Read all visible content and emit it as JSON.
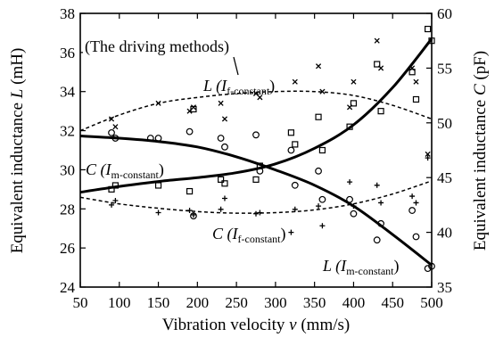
{
  "chart_data": {
    "type": "scatter",
    "xlabel": {
      "text": "Vibration velocity ",
      "var": "v",
      "unit": " (mm/s)"
    },
    "ylabel_left": {
      "text": "Equivalent inductance ",
      "var": "L",
      "unit": " (mH)"
    },
    "ylabel_right": {
      "text": "Equivalent inductance ",
      "var": "C",
      "unit": " (pF)"
    },
    "xlim": [
      50,
      500
    ],
    "ylim_left": [
      24,
      38
    ],
    "ylim_right": [
      35,
      60
    ],
    "xticks": [
      "50",
      "100",
      "150",
      "200",
      "250",
      "300",
      "350",
      "400",
      "450",
      "500"
    ],
    "yticks_left": [
      "24",
      "26",
      "28",
      "30",
      "32",
      "34",
      "36",
      "38"
    ],
    "yticks_right": [
      "35",
      "40",
      "45",
      "50",
      "55",
      "60"
    ],
    "grid": false,
    "annotations": [
      {
        "id": "methods",
        "text": "(The driving methods)"
      },
      {
        "id": "L_f",
        "main": "L (I",
        "sub": "f-constant",
        "close": ")"
      },
      {
        "id": "C_m",
        "main": "C (I",
        "sub": "m-constant",
        "close": ")"
      },
      {
        "id": "C_f",
        "main": "C (I",
        "sub": "f-constant",
        "close": ")"
      },
      {
        "id": "L_m",
        "main": "L (I",
        "sub": "m-constant",
        "close": ")"
      }
    ],
    "series": [
      {
        "axis": "left",
        "marker": "x",
        "line": "dashed",
        "points": [
          [
            90,
            32.6
          ],
          [
            95,
            32.2
          ],
          [
            150,
            33.4
          ],
          [
            190,
            33.0
          ],
          [
            195,
            33.2
          ],
          [
            230,
            33.4
          ],
          [
            235,
            32.6
          ],
          [
            275,
            33.9
          ],
          [
            280,
            33.7
          ],
          [
            320,
            36.4
          ],
          [
            325,
            34.5
          ],
          [
            355,
            35.3
          ],
          [
            360,
            34.0
          ],
          [
            395,
            33.2
          ],
          [
            400,
            34.5
          ],
          [
            430,
            36.6
          ],
          [
            435,
            35.2
          ],
          [
            475,
            35.2
          ],
          [
            480,
            34.5
          ],
          [
            495,
            30.8
          ]
        ],
        "fit": [
          [
            50,
            32.0
          ],
          [
            100,
            32.8
          ],
          [
            150,
            33.4
          ],
          [
            200,
            33.7
          ],
          [
            250,
            33.9
          ],
          [
            300,
            34.0
          ],
          [
            350,
            34.0
          ],
          [
            400,
            33.8
          ],
          [
            450,
            33.3
          ],
          [
            500,
            32.6
          ]
        ]
      },
      {
        "axis": "left",
        "marker": "square",
        "line": "solid",
        "points": [
          [
            90,
            29.0
          ],
          [
            95,
            29.2
          ],
          [
            150,
            29.2
          ],
          [
            190,
            28.9
          ],
          [
            195,
            33.1
          ],
          [
            230,
            29.5
          ],
          [
            235,
            29.3
          ],
          [
            275,
            29.5
          ],
          [
            280,
            30.2
          ],
          [
            320,
            31.9
          ],
          [
            325,
            31.3
          ],
          [
            355,
            32.7
          ],
          [
            360,
            31.0
          ],
          [
            395,
            32.2
          ],
          [
            400,
            33.4
          ],
          [
            430,
            35.4
          ],
          [
            435,
            33.0
          ],
          [
            475,
            35.0
          ],
          [
            480,
            33.6
          ],
          [
            495,
            37.2
          ],
          [
            500,
            36.6
          ]
        ],
        "fit": [
          [
            50,
            28.85
          ],
          [
            100,
            29.15
          ],
          [
            150,
            29.4
          ],
          [
            200,
            29.6
          ],
          [
            250,
            29.85
          ],
          [
            300,
            30.3
          ],
          [
            350,
            31.1
          ],
          [
            400,
            32.3
          ],
          [
            450,
            34.2
          ],
          [
            500,
            36.7
          ]
        ]
      },
      {
        "axis": "right",
        "marker": "circle",
        "line": "solid",
        "points": [
          [
            90,
            49.1
          ],
          [
            95,
            48.6
          ],
          [
            140,
            48.6
          ],
          [
            150,
            48.6
          ],
          [
            190,
            49.2
          ],
          [
            195,
            41.5
          ],
          [
            230,
            48.6
          ],
          [
            235,
            47.8
          ],
          [
            275,
            48.9
          ],
          [
            280,
            45.6
          ],
          [
            320,
            47.5
          ],
          [
            325,
            44.3
          ],
          [
            355,
            45.6
          ],
          [
            360,
            43.0
          ],
          [
            395,
            43.0
          ],
          [
            400,
            41.7
          ],
          [
            430,
            39.3
          ],
          [
            435,
            40.8
          ],
          [
            475,
            42.0
          ],
          [
            480,
            39.6
          ],
          [
            495,
            36.7
          ],
          [
            500,
            36.9
          ]
        ],
        "fit": [
          [
            50,
            48.8
          ],
          [
            100,
            48.6
          ],
          [
            150,
            48.3
          ],
          [
            200,
            47.8
          ],
          [
            250,
            46.9
          ],
          [
            300,
            45.7
          ],
          [
            350,
            44.3
          ],
          [
            400,
            42.4
          ],
          [
            450,
            39.8
          ],
          [
            500,
            37.0
          ]
        ]
      },
      {
        "axis": "right",
        "marker": "plus",
        "line": "dashed",
        "points": [
          [
            90,
            42.5
          ],
          [
            95,
            42.9
          ],
          [
            150,
            41.8
          ],
          [
            190,
            42.0
          ],
          [
            195,
            41.6
          ],
          [
            230,
            42.1
          ],
          [
            235,
            43.1
          ],
          [
            275,
            41.7
          ],
          [
            280,
            41.8
          ],
          [
            320,
            40.0
          ],
          [
            325,
            42.1
          ],
          [
            355,
            42.4
          ],
          [
            360,
            40.6
          ],
          [
            395,
            44.6
          ],
          [
            400,
            42.4
          ],
          [
            430,
            44.3
          ],
          [
            435,
            42.7
          ],
          [
            475,
            43.3
          ],
          [
            480,
            42.7
          ],
          [
            495,
            46.8
          ]
        ],
        "fit": [
          [
            50,
            43.2
          ],
          [
            100,
            42.6
          ],
          [
            150,
            42.2
          ],
          [
            200,
            41.9
          ],
          [
            250,
            41.75
          ],
          [
            300,
            41.8
          ],
          [
            350,
            42.05
          ],
          [
            400,
            42.6
          ],
          [
            450,
            43.5
          ],
          [
            500,
            44.7
          ]
        ]
      }
    ]
  }
}
